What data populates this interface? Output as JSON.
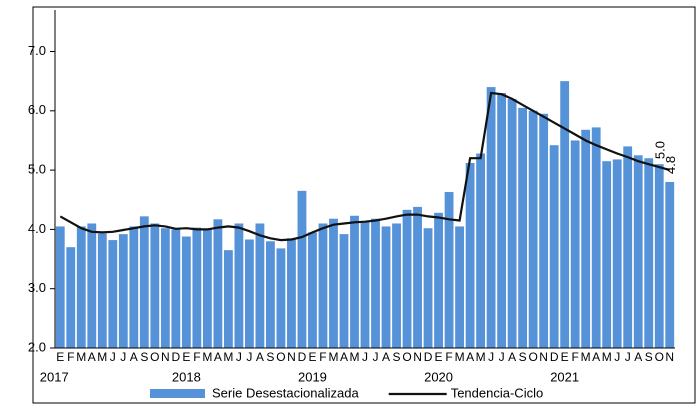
{
  "chart_data": {
    "type": "bar",
    "categories": [
      "E",
      "F",
      "M",
      "A",
      "M",
      "J",
      "J",
      "A",
      "S",
      "O",
      "N",
      "D",
      "E",
      "F",
      "M",
      "A",
      "M",
      "J",
      "J",
      "A",
      "S",
      "O",
      "N",
      "D",
      "E",
      "F",
      "M",
      "A",
      "M",
      "J",
      "J",
      "A",
      "S",
      "O",
      "N",
      "D",
      "E",
      "F",
      "M",
      "A",
      "M",
      "J",
      "J",
      "A",
      "S",
      "O",
      "N",
      "D",
      "E",
      "F",
      "M",
      "A",
      "M",
      "J",
      "J",
      "A",
      "S",
      "O",
      "N"
    ],
    "years": [
      "2017",
      "2018",
      "2019",
      "2020",
      "2021"
    ],
    "series": [
      {
        "name": "Serie Desestacionalizada",
        "type": "bar",
        "color": "#5592d8",
        "values": [
          4.05,
          3.7,
          4.05,
          4.1,
          3.93,
          3.82,
          3.92,
          4.05,
          4.22,
          4.1,
          4.02,
          4.0,
          3.88,
          4.03,
          4.0,
          4.17,
          3.65,
          4.1,
          3.83,
          4.1,
          3.8,
          3.68,
          3.85,
          4.65,
          3.95,
          4.1,
          4.18,
          3.92,
          4.23,
          4.12,
          4.18,
          4.05,
          4.1,
          4.33,
          4.38,
          4.02,
          4.28,
          4.63,
          4.05,
          5.12,
          5.28,
          6.4,
          6.3,
          6.2,
          6.05,
          6.0,
          5.95,
          5.42,
          6.5,
          5.5,
          5.68,
          5.72,
          5.15,
          5.18,
          5.4,
          5.25,
          5.2,
          5.1,
          4.8
        ],
        "value_labels": [
          null,
          null,
          null,
          null,
          null,
          null,
          null,
          null,
          null,
          null,
          null,
          null,
          null,
          null,
          null,
          null,
          null,
          null,
          null,
          null,
          null,
          null,
          null,
          null,
          null,
          null,
          null,
          null,
          null,
          null,
          null,
          null,
          null,
          null,
          null,
          null,
          null,
          null,
          null,
          null,
          null,
          null,
          null,
          null,
          null,
          null,
          null,
          null,
          null,
          null,
          null,
          null,
          null,
          null,
          null,
          null,
          null,
          null,
          "4.8"
        ]
      },
      {
        "name": "Tendencia-Ciclo",
        "type": "line",
        "color": "#111111",
        "values": [
          4.22,
          4.12,
          4.02,
          3.96,
          3.95,
          3.96,
          3.99,
          4.02,
          4.05,
          4.07,
          4.05,
          4.01,
          4.02,
          4.0,
          4.0,
          4.03,
          4.05,
          4.03,
          3.97,
          3.9,
          3.85,
          3.82,
          3.83,
          3.87,
          3.95,
          4.02,
          4.08,
          4.1,
          4.12,
          4.13,
          4.15,
          4.18,
          4.22,
          4.25,
          4.25,
          4.22,
          4.2,
          4.17,
          4.15,
          5.2,
          5.2,
          6.3,
          6.28,
          6.2,
          6.1,
          6.0,
          5.9,
          5.8,
          5.7,
          5.6,
          5.5,
          5.42,
          5.35,
          5.28,
          5.22,
          5.15,
          5.1,
          5.05,
          5.0
        ],
        "value_labels": [
          null,
          null,
          null,
          null,
          null,
          null,
          null,
          null,
          null,
          null,
          null,
          null,
          null,
          null,
          null,
          null,
          null,
          null,
          null,
          null,
          null,
          null,
          null,
          null,
          null,
          null,
          null,
          null,
          null,
          null,
          null,
          null,
          null,
          null,
          null,
          null,
          null,
          null,
          null,
          null,
          null,
          null,
          null,
          null,
          null,
          null,
          null,
          null,
          null,
          null,
          null,
          null,
          null,
          null,
          null,
          null,
          null,
          "5.0",
          null
        ]
      }
    ],
    "ylim": [
      2,
      7.7
    ],
    "yticks": [
      {
        "value": 2,
        "label": "2.0"
      },
      {
        "value": 3,
        "label": "3.0"
      },
      {
        "value": 4,
        "label": "4.0"
      },
      {
        "value": 5,
        "label": "5.0"
      },
      {
        "value": 6,
        "label": "6.0"
      },
      {
        "value": 7,
        "label": "7.0"
      }
    ]
  }
}
